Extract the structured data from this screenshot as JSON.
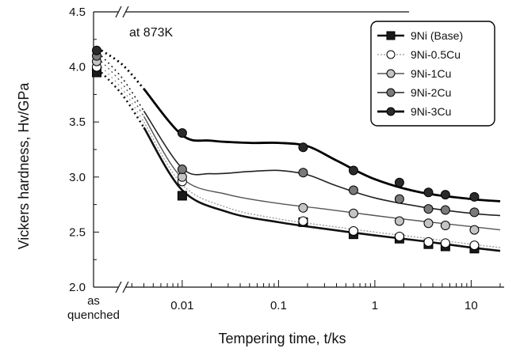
{
  "chart_data": {
    "type": "line",
    "annotation": "at 873K",
    "xlabel": "Tempering time, t/ks",
    "ylabel": "Vickers hardness, Hv/GPa",
    "x_scale": "log",
    "xlim": [
      0.0012,
      22
    ],
    "ylim": [
      2.0,
      4.5
    ],
    "yticks": [
      2.0,
      2.5,
      3.0,
      3.5,
      4.0,
      4.5
    ],
    "ytick_labels": [
      "2.0",
      "2.5",
      "3.0",
      "3.5",
      "4.0",
      "4.5"
    ],
    "xticks": [
      0.01,
      0.1,
      1,
      10
    ],
    "xtick_labels": [
      "0.01",
      "0.1",
      "1",
      "10"
    ],
    "as_quenched_label": [
      "as",
      "quenched"
    ],
    "axis_breaks": true,
    "grid": false,
    "legend_position": "top-right",
    "series": [
      {
        "name": "9Ni (Base)",
        "marker": "square",
        "fill": "#1a1a1a",
        "line_color": "#111111",
        "line_width": 2.6,
        "dash": "",
        "as_quenched": 3.95,
        "x": [
          0.01,
          0.18,
          0.6,
          1.8,
          3.6,
          5.4,
          10.8
        ],
        "y": [
          2.83,
          2.59,
          2.48,
          2.44,
          2.39,
          2.37,
          2.35
        ],
        "curve_x": [
          0.004,
          0.01,
          0.03,
          0.1,
          0.3,
          1,
          3,
          10,
          20
        ],
        "curve_y": [
          3.45,
          2.88,
          2.68,
          2.59,
          2.53,
          2.47,
          2.42,
          2.36,
          2.33
        ]
      },
      {
        "name": "9Ni-0.5Cu",
        "marker": "circle",
        "fill": "#ffffff",
        "line_color": "#999999",
        "line_width": 1.3,
        "dash": "2,2",
        "as_quenched": 4.0,
        "x": [
          0.01,
          0.18,
          0.6,
          1.8,
          3.6,
          5.4,
          10.8
        ],
        "y": [
          2.96,
          2.6,
          2.51,
          2.46,
          2.41,
          2.4,
          2.38
        ],
        "curve_x": [
          0.004,
          0.01,
          0.03,
          0.1,
          0.3,
          1,
          3,
          10,
          20
        ],
        "curve_y": [
          3.5,
          2.93,
          2.72,
          2.62,
          2.56,
          2.5,
          2.45,
          2.39,
          2.36
        ]
      },
      {
        "name": "9Ni-1Cu",
        "marker": "circle",
        "fill": "#c4c4c4",
        "line_color": "#555555",
        "line_width": 1.4,
        "dash": "",
        "as_quenched": 4.05,
        "x": [
          0.01,
          0.18,
          0.6,
          1.8,
          3.6,
          5.4,
          10.8
        ],
        "y": [
          3.0,
          2.72,
          2.67,
          2.6,
          2.58,
          2.56,
          2.52
        ],
        "curve_x": [
          0.004,
          0.01,
          0.03,
          0.1,
          0.3,
          1,
          3,
          10,
          20
        ],
        "curve_y": [
          3.55,
          2.99,
          2.84,
          2.76,
          2.71,
          2.65,
          2.6,
          2.55,
          2.52
        ]
      },
      {
        "name": "9Ni-2Cu",
        "marker": "circle",
        "fill": "#7a7a7a",
        "line_color": "#222222",
        "line_width": 1.6,
        "dash": "",
        "as_quenched": 4.1,
        "x": [
          0.01,
          0.18,
          0.6,
          1.8,
          3.6,
          5.4,
          10.8
        ],
        "y": [
          3.07,
          3.04,
          2.88,
          2.8,
          2.71,
          2.7,
          2.68
        ],
        "curve_x": [
          0.004,
          0.01,
          0.02,
          0.05,
          0.1,
          0.2,
          0.4,
          1,
          3,
          10,
          20
        ],
        "curve_y": [
          3.6,
          3.08,
          3.03,
          3.05,
          3.06,
          3.02,
          2.92,
          2.81,
          2.73,
          2.67,
          2.65
        ]
      },
      {
        "name": "9Ni-3Cu",
        "marker": "circle",
        "fill": "#2a2a2a",
        "line_color": "#000000",
        "line_width": 2.8,
        "dash": "",
        "as_quenched": 4.15,
        "x": [
          0.01,
          0.18,
          0.6,
          1.8,
          3.6,
          5.4,
          10.8
        ],
        "y": [
          3.4,
          3.27,
          3.06,
          2.95,
          2.86,
          2.84,
          2.82
        ],
        "curve_x": [
          0.004,
          0.01,
          0.02,
          0.05,
          0.1,
          0.2,
          0.4,
          1,
          3,
          10,
          20
        ],
        "curve_y": [
          3.8,
          3.38,
          3.33,
          3.31,
          3.31,
          3.28,
          3.15,
          2.98,
          2.86,
          2.8,
          2.78
        ]
      }
    ]
  }
}
